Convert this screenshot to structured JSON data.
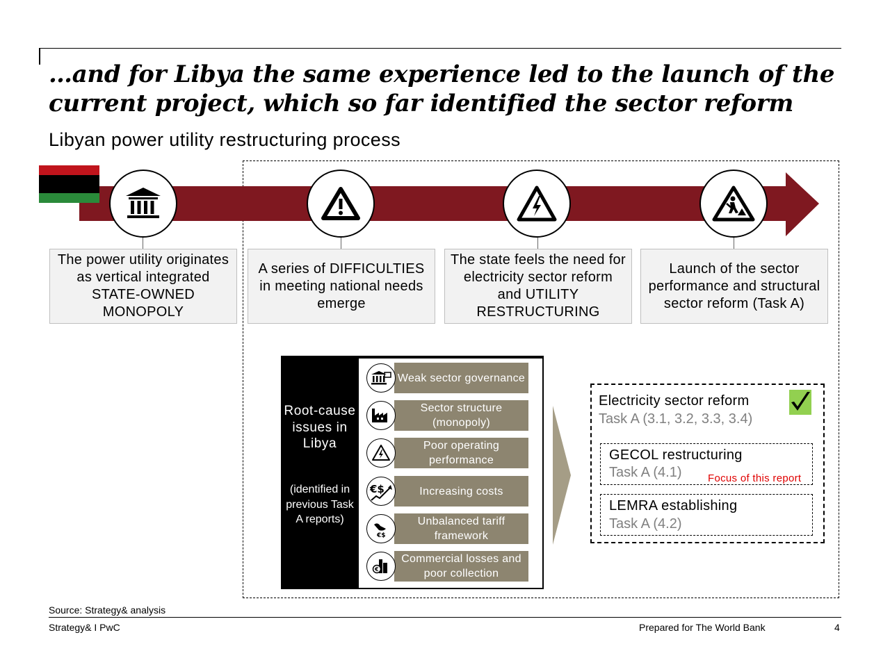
{
  "title": "…and for Libya the same experience led to the launch of the current project, which so far identified the sector reform",
  "subtitle": "Libyan power utility restructuring process",
  "colors": {
    "arrow": "#7f1820",
    "issue_fill": "#8d8570",
    "check_fill": "#92d050",
    "focus_text": "#e00000",
    "task_gray": "#808080"
  },
  "flag": {
    "name": "libya-flag-icon"
  },
  "steps": [
    {
      "icon": "government-building-icon",
      "text": "The power utility originates as vertical integrated STATE-OWNED MONOPOLY"
    },
    {
      "icon": "warning-icon",
      "text": "A series of DIFFICULTIES in meeting national needs emerge"
    },
    {
      "icon": "high-voltage-icon",
      "text": "The state feels the need for electricity sector reform and UTILITY RESTRUCTURING"
    },
    {
      "icon": "road-works-icon",
      "text": "Launch of the sector performance and structural sector reform (Task A)"
    }
  ],
  "root": {
    "title": "Root-cause issues in Libya",
    "note": "(identified in previous Task A reports)",
    "issues": [
      {
        "icon": "governance-building-icon",
        "label": "Weak sector governance"
      },
      {
        "icon": "factory-icon",
        "label": "Sector structure (monopoly)"
      },
      {
        "icon": "electric-bolt-icon",
        "label": "Poor operating performance"
      },
      {
        "icon": "rising-cost-icon",
        "label": "Increasing costs"
      },
      {
        "icon": "tariff-balance-icon",
        "label": "Unbalanced tariff framework"
      },
      {
        "icon": "money-loss-icon",
        "label": "Commercial losses and poor collection"
      }
    ]
  },
  "reform": {
    "title": "Electricity sector reform",
    "task": "Task A (3.1, 3.2, 3.3, 3.4)",
    "check_icon": "checkmark-icon",
    "items": [
      {
        "title": "GECOL restructuring",
        "task": "Task A (4.1)"
      },
      {
        "title": "LEMRA establishing",
        "task": "Task A (4.2)"
      }
    ],
    "focus_label": "Focus of this report"
  },
  "source": "Source: Strategy& analysis",
  "footer": {
    "left": "Strategy& I PwC",
    "center": "Prepared for The World Bank",
    "page": "4"
  }
}
